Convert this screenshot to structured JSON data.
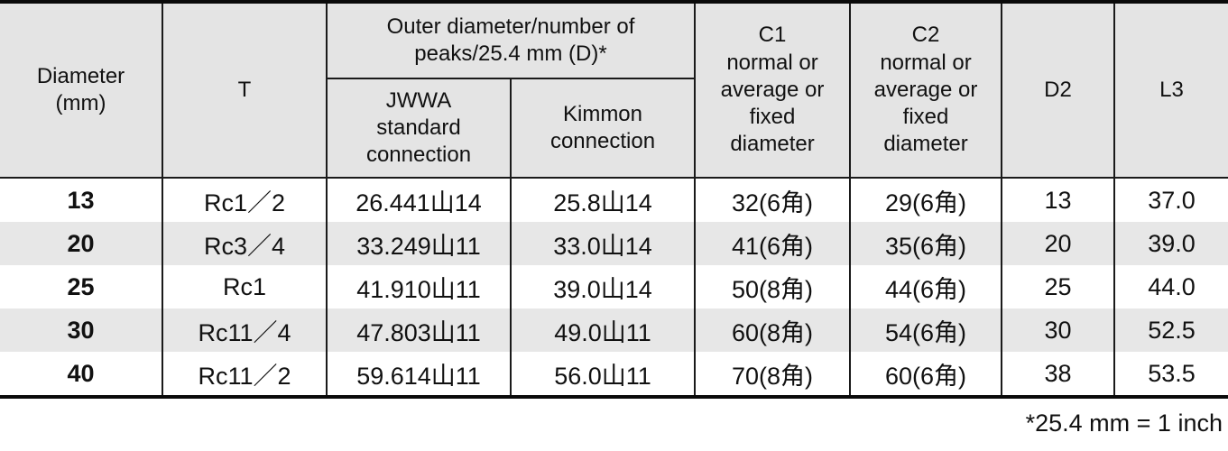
{
  "table": {
    "header": {
      "diameter": "Diameter\n(mm)",
      "t": "T",
      "outer_group": "Outer diameter/number of\npeaks/25.4 mm (D)*",
      "jwwa": "JWWA\nstandard\nconnection",
      "kimmon": "Kimmon\nconnection",
      "c1": "C1\nnormal or\naverage or\nfixed\ndiameter",
      "c2": "C2\nnormal or\naverage or\nfixed\ndiameter",
      "d2": "D2",
      "l3": "L3"
    },
    "rows": [
      [
        "13",
        "Rc1／2",
        "26.441山14",
        "25.8山14",
        "32(6角)",
        "29(6角)",
        "13",
        "37.0"
      ],
      [
        "20",
        "Rc3／4",
        "33.249山11",
        "33.0山14",
        "41(6角)",
        "35(6角)",
        "20",
        "39.0"
      ],
      [
        "25",
        "Rc1",
        "41.910山11",
        "39.0山14",
        "50(8角)",
        "44(6角)",
        "25",
        "44.0"
      ],
      [
        "30",
        "Rc11／4",
        "47.803山11",
        "49.0山11",
        "60(8角)",
        "54(6角)",
        "30",
        "52.5"
      ],
      [
        "40",
        "Rc11／2",
        "59.614山11",
        "56.0山11",
        "70(8角)",
        "60(6角)",
        "38",
        "53.5"
      ]
    ],
    "footnote": "*25.4 mm = 1 inch"
  },
  "colors": {
    "header_bg": "#e4e4e4",
    "band_bg": "#e7e7e7",
    "border_thin": "#1a1a1a",
    "border_thick": "#0a0a0a"
  }
}
